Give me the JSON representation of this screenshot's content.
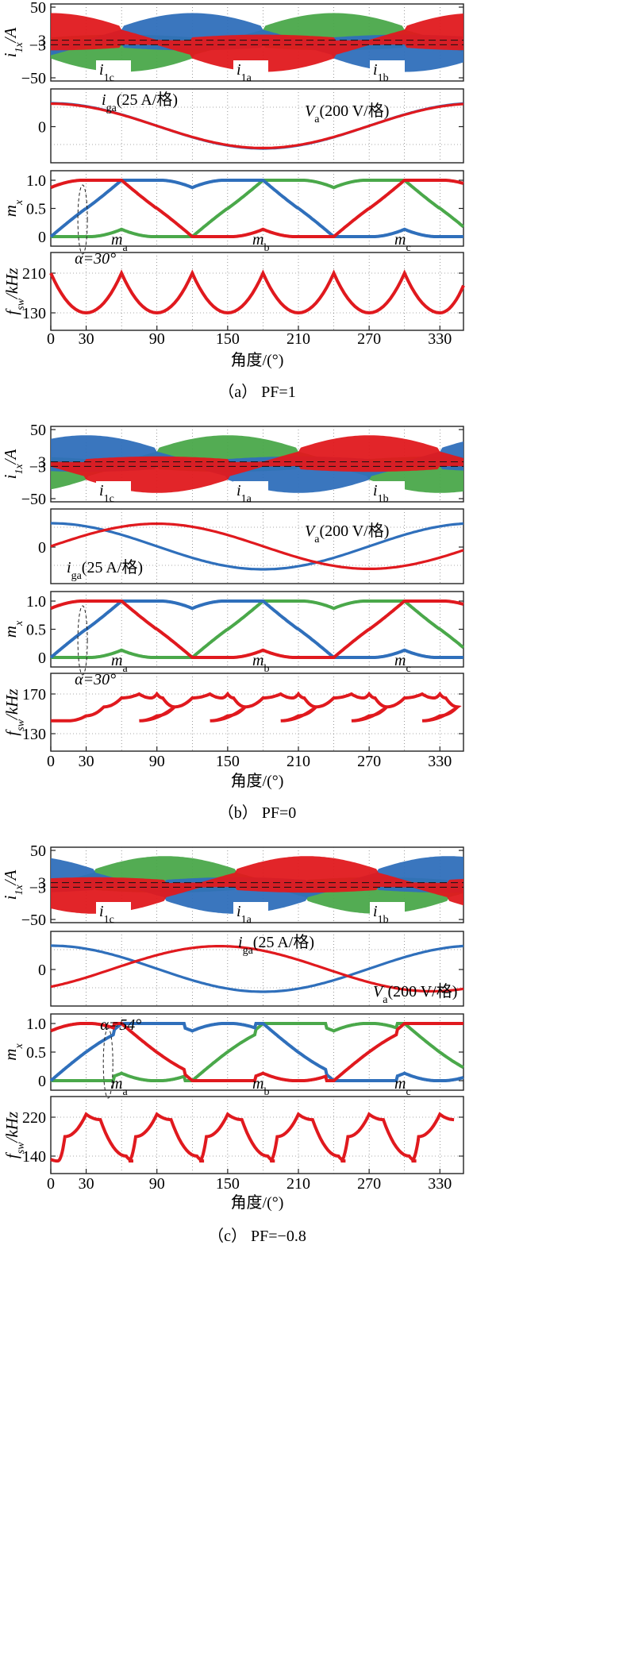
{
  "colors": {
    "phase_a": "#e0191e",
    "phase_b": "#2f6fbb",
    "phase_c": "#4aa84a",
    "axis": "#222222",
    "grid": "#555555"
  },
  "figures": [
    {
      "caption": "（a） PF=1",
      "x_axis": {
        "label": "角度/(°)",
        "ticks": [
          "0",
          "30",
          "90",
          "150",
          "210",
          "270",
          "330"
        ],
        "range": [
          0,
          350
        ]
      },
      "current_panel": {
        "ylabel": "i_1x/A",
        "ytick_labels": [
          "50",
          "3",
          "−3",
          "−50"
        ],
        "ylim": [
          -50,
          50
        ],
        "labels": [
          "i_1c",
          "i_1a",
          "i_1b"
        ]
      },
      "waveform_panel": {
        "ytick_labels": [
          "0"
        ],
        "labels": [
          "i_ga(25 A/格)",
          "V_a(200 V/格)"
        ]
      },
      "mod_panel": {
        "ylabel": "m_x",
        "ytick_labels": [
          "1.0",
          "0.5",
          "0"
        ],
        "ylim": [
          0,
          1
        ],
        "labels": [
          "m_a",
          "m_b",
          "m_c"
        ],
        "alpha_label": "α=30°"
      },
      "fsw_panel": {
        "ylabel": "f_sw/kHz",
        "ytick_labels": [
          "210",
          "130"
        ]
      }
    },
    {
      "caption": "（b） PF=0",
      "x_axis": {
        "label": "角度/(°)",
        "ticks": [
          "0",
          "30",
          "90",
          "150",
          "210",
          "270",
          "330"
        ],
        "range": [
          0,
          350
        ]
      },
      "current_panel": {
        "ylabel": "i_1x/A",
        "ytick_labels": [
          "50",
          "3",
          "−3",
          "−50"
        ],
        "ylim": [
          -50,
          50
        ],
        "labels": [
          "i_1c",
          "i_1a",
          "i_1b"
        ]
      },
      "waveform_panel": {
        "ytick_labels": [
          "0"
        ],
        "labels": [
          "i_ga(25 A/格)",
          "V_a(200 V/格)"
        ]
      },
      "mod_panel": {
        "ylabel": "m_x",
        "ytick_labels": [
          "1.0",
          "0.5",
          "0"
        ],
        "ylim": [
          0,
          1
        ],
        "labels": [
          "m_a",
          "m_b",
          "m_c"
        ],
        "alpha_label": "α=30°"
      },
      "fsw_panel": {
        "ylabel": "f_sw/kHz",
        "ytick_labels": [
          "170",
          "130"
        ]
      }
    },
    {
      "caption": "（c） PF=−0.8",
      "x_axis": {
        "label": "角度/(°)",
        "ticks": [
          "0",
          "30",
          "90",
          "150",
          "210",
          "270",
          "330"
        ],
        "range": [
          0,
          350
        ]
      },
      "current_panel": {
        "ylabel": "i_1x/A",
        "ytick_labels": [
          "50",
          "3",
          "−3",
          "−50"
        ],
        "ylim": [
          -50,
          50
        ],
        "labels": [
          "i_1c",
          "i_1a",
          "i_1b"
        ]
      },
      "waveform_panel": {
        "ytick_labels": [
          "0"
        ],
        "labels": [
          "i_ga(25 A/格)",
          "V_a(200 V/格)"
        ]
      },
      "mod_panel": {
        "ylabel": "m_x",
        "ytick_labels": [
          "1.0",
          "0.5",
          "0"
        ],
        "ylim": [
          0,
          1
        ],
        "labels": [
          "m_a",
          "m_b",
          "m_c"
        ],
        "alpha_label": "α=54°"
      },
      "fsw_panel": {
        "ylabel": "f_sw/kHz",
        "ytick_labels": [
          "220",
          "140"
        ]
      }
    }
  ],
  "chart_data": [
    {
      "type": "line",
      "title": "（a） PF=1",
      "xlabel": "角度/(°)",
      "xlim": [
        0,
        350
      ],
      "power_factor": 1,
      "alpha_deg": 30,
      "phase_shift_deg": 0,
      "series": [
        {
          "name": "m_a",
          "x": [
            0,
            30,
            30,
            60,
            90,
            120,
            150,
            150,
            210,
            210,
            240,
            270,
            300,
            330,
            330,
            350
          ],
          "y": [
            0,
            0,
            0.27,
            0.45,
            0.6,
            0.75,
            0.94,
            1.0,
            1.0,
            0.86,
            0.6,
            0.45,
            0.3,
            0.22,
            0,
            0
          ]
        },
        {
          "name": "f_sw",
          "x": [
            0,
            30,
            60,
            90,
            120,
            150,
            180,
            210,
            240,
            270,
            300,
            330,
            350
          ],
          "y": [
            210,
            130,
            210,
            130,
            210,
            130,
            210,
            130,
            210,
            130,
            210,
            130,
            185
          ]
        }
      ]
    },
    {
      "type": "line",
      "title": "（b） PF=0",
      "xlabel": "角度/(°)",
      "xlim": [
        0,
        350
      ],
      "power_factor": 0,
      "alpha_deg": 30,
      "phase_shift_deg": 90,
      "series": [
        {
          "name": "f_sw",
          "x": [
            0,
            15,
            30,
            45,
            60,
            75,
            85,
            90,
            95,
            105,
            120
          ],
          "y": [
            143,
            143,
            148,
            157,
            166,
            170,
            166,
            170,
            166,
            157,
            143
          ],
          "note_periodic_deg": 60
        }
      ]
    },
    {
      "type": "line",
      "title": "（c） PF=−0.8",
      "xlabel": "角度/(°)",
      "xlim": [
        0,
        350
      ],
      "power_factor": -0.8,
      "alpha_deg": 54,
      "phase_shift_deg": 143,
      "series": [
        {
          "name": "f_sw",
          "x": [
            0,
            6,
            12,
            30,
            42,
            64,
            70,
            90
          ],
          "y": [
            133,
            130,
            180,
            226,
            215,
            140,
            130,
            180
          ],
          "note_periodic_deg": 60
        }
      ]
    }
  ]
}
